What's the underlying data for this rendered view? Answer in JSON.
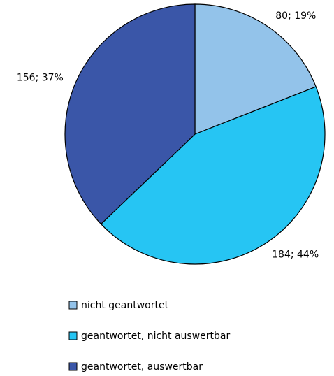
{
  "chart_data": {
    "type": "pie",
    "categories": [
      "nicht geantwortet",
      "geantwortet, nicht auswertbar",
      "geantwortet, auswertbar"
    ],
    "values": [
      80,
      184,
      156
    ],
    "value_labels": [
      "80; 19%",
      "184; 44%",
      "156; 37%"
    ],
    "colors": [
      "#93c3ea",
      "#26c5f3",
      "#3a56a8"
    ],
    "legend": "bottom"
  }
}
